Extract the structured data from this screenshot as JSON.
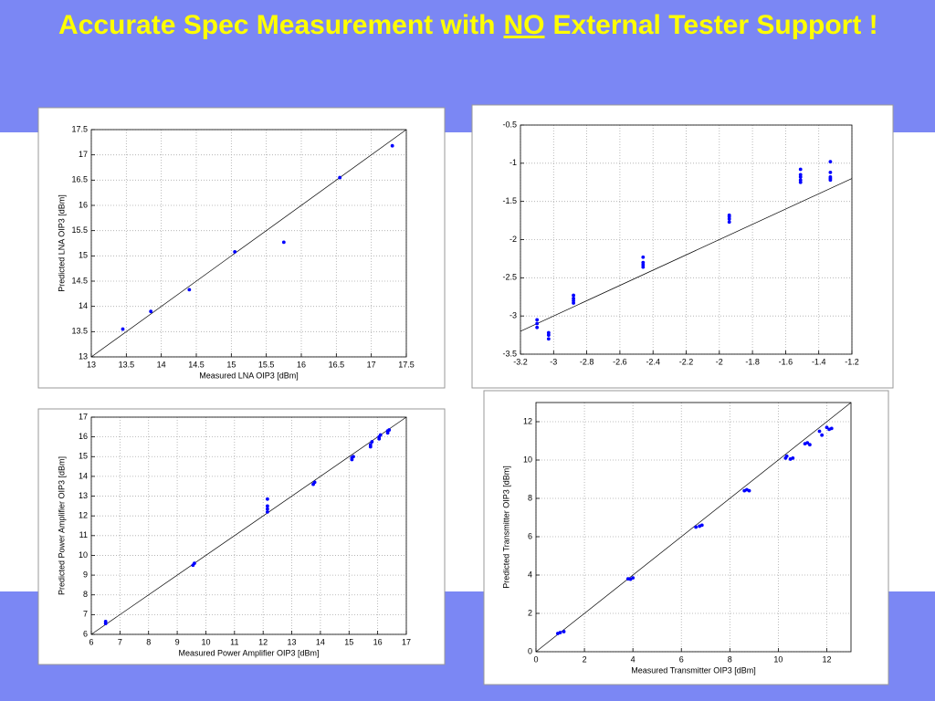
{
  "title": [
    "Accurate Spec Measurement with",
    "NO",
    "External Tester Support !"
  ],
  "chart_data": [
    {
      "type": "scatter",
      "xlabel": "Measured LNA OIP3 [dBm]",
      "ylabel": "Predicted LNA OIP3 [dBm]",
      "x": [
        13.45,
        13.85,
        14.4,
        15.05,
        15.75,
        16.55,
        17.3
      ],
      "values": [
        13.55,
        13.9,
        14.33,
        15.08,
        15.27,
        16.55,
        17.18
      ],
      "color": "#0000ff",
      "grid": true,
      "xlim": [
        13,
        17.5
      ],
      "xticks": [
        13,
        13.5,
        14,
        14.5,
        15,
        15.5,
        16,
        16.5,
        17,
        17.5
      ],
      "ylim": [
        13,
        17.5
      ],
      "yticks": [
        13,
        13.5,
        14,
        14.5,
        15,
        15.5,
        16,
        16.5,
        17,
        17.5
      ]
    },
    {
      "type": "scatter",
      "x": [
        -3.1,
        -3.1,
        -3.1,
        -3.03,
        -3.03,
        -3.03,
        -2.88,
        -2.88,
        -2.88,
        -2.88,
        -2.46,
        -2.46,
        -2.46,
        -2.46,
        -1.94,
        -1.94,
        -1.94,
        -1.94,
        -1.51,
        -1.51,
        -1.51,
        -1.51,
        -1.51,
        -1.33,
        -1.33,
        -1.33,
        -1.33,
        -1.33
      ],
      "values": [
        -3.05,
        -3.1,
        -3.15,
        -3.22,
        -3.25,
        -3.3,
        -2.73,
        -2.77,
        -2.8,
        -2.83,
        -2.23,
        -2.3,
        -2.33,
        -2.36,
        -1.68,
        -1.7,
        -1.73,
        -1.77,
        -1.08,
        -1.15,
        -1.18,
        -1.22,
        -1.25,
        -0.98,
        -1.12,
        -1.18,
        -1.2,
        -1.22
      ],
      "color": "#0000ff",
      "grid": true,
      "xlim": [
        -3.2,
        -1.2
      ],
      "xticks": [
        -3.2,
        -3,
        -2.8,
        -2.6,
        -2.4,
        -2.2,
        -2,
        -1.8,
        -1.6,
        -1.4,
        -1.2
      ],
      "ylim": [
        -3.5,
        -0.5
      ],
      "yticks": [
        -3.5,
        -3,
        -2.5,
        -2,
        -1.5,
        -1,
        -0.5
      ]
    },
    {
      "type": "scatter",
      "xlabel": "Measured Power Amplifier OIP3 [dBm]",
      "ylabel": "Predicted Power Amplifier OIP3 [dBm]",
      "x": [
        6.5,
        6.5,
        9.55,
        9.6,
        12.15,
        12.15,
        12.15,
        12.15,
        13.75,
        13.8,
        15.1,
        15.1,
        15.15,
        15.75,
        15.75,
        15.8,
        16.05,
        16.05,
        16.1,
        16.35,
        16.35,
        16.4
      ],
      "values": [
        6.55,
        6.65,
        9.5,
        9.6,
        12.2,
        12.35,
        12.5,
        12.85,
        13.6,
        13.7,
        14.85,
        14.95,
        15.0,
        15.5,
        15.6,
        15.75,
        15.9,
        16.0,
        16.1,
        16.2,
        16.3,
        16.35
      ],
      "color": "#0000ff",
      "grid": true,
      "xlim": [
        6,
        17
      ],
      "xticks": [
        6,
        7,
        8,
        9,
        10,
        11,
        12,
        13,
        14,
        15,
        16,
        17
      ],
      "ylim": [
        6,
        17
      ],
      "yticks": [
        6,
        7,
        8,
        9,
        10,
        11,
        12,
        13,
        14,
        15,
        16,
        17
      ]
    },
    {
      "type": "scatter",
      "xlabel": "Measured Transmitter OIP3 [dBm]",
      "ylabel": "Predicted Transmitter OIP3 [dBm]",
      "x": [
        0.9,
        1.0,
        1.15,
        3.8,
        3.9,
        4.0,
        6.6,
        6.75,
        6.85,
        8.6,
        8.7,
        8.8,
        10.3,
        10.35,
        10.5,
        10.6,
        11.1,
        11.2,
        11.3,
        11.7,
        11.8,
        12.0,
        12.1,
        12.2
      ],
      "values": [
        0.95,
        1.0,
        1.05,
        3.8,
        3.78,
        3.85,
        6.5,
        6.55,
        6.6,
        8.4,
        8.45,
        8.4,
        10.1,
        10.2,
        10.05,
        10.1,
        10.85,
        10.9,
        10.8,
        11.5,
        11.3,
        11.7,
        11.6,
        11.65
      ],
      "color": "#0000ff",
      "grid": true,
      "xlim": [
        0,
        13
      ],
      "xticks": [
        0,
        2,
        4,
        6,
        8,
        10,
        12
      ],
      "ylim": [
        0,
        13
      ],
      "yticks": [
        0,
        2,
        4,
        6,
        8,
        10,
        12
      ]
    }
  ]
}
